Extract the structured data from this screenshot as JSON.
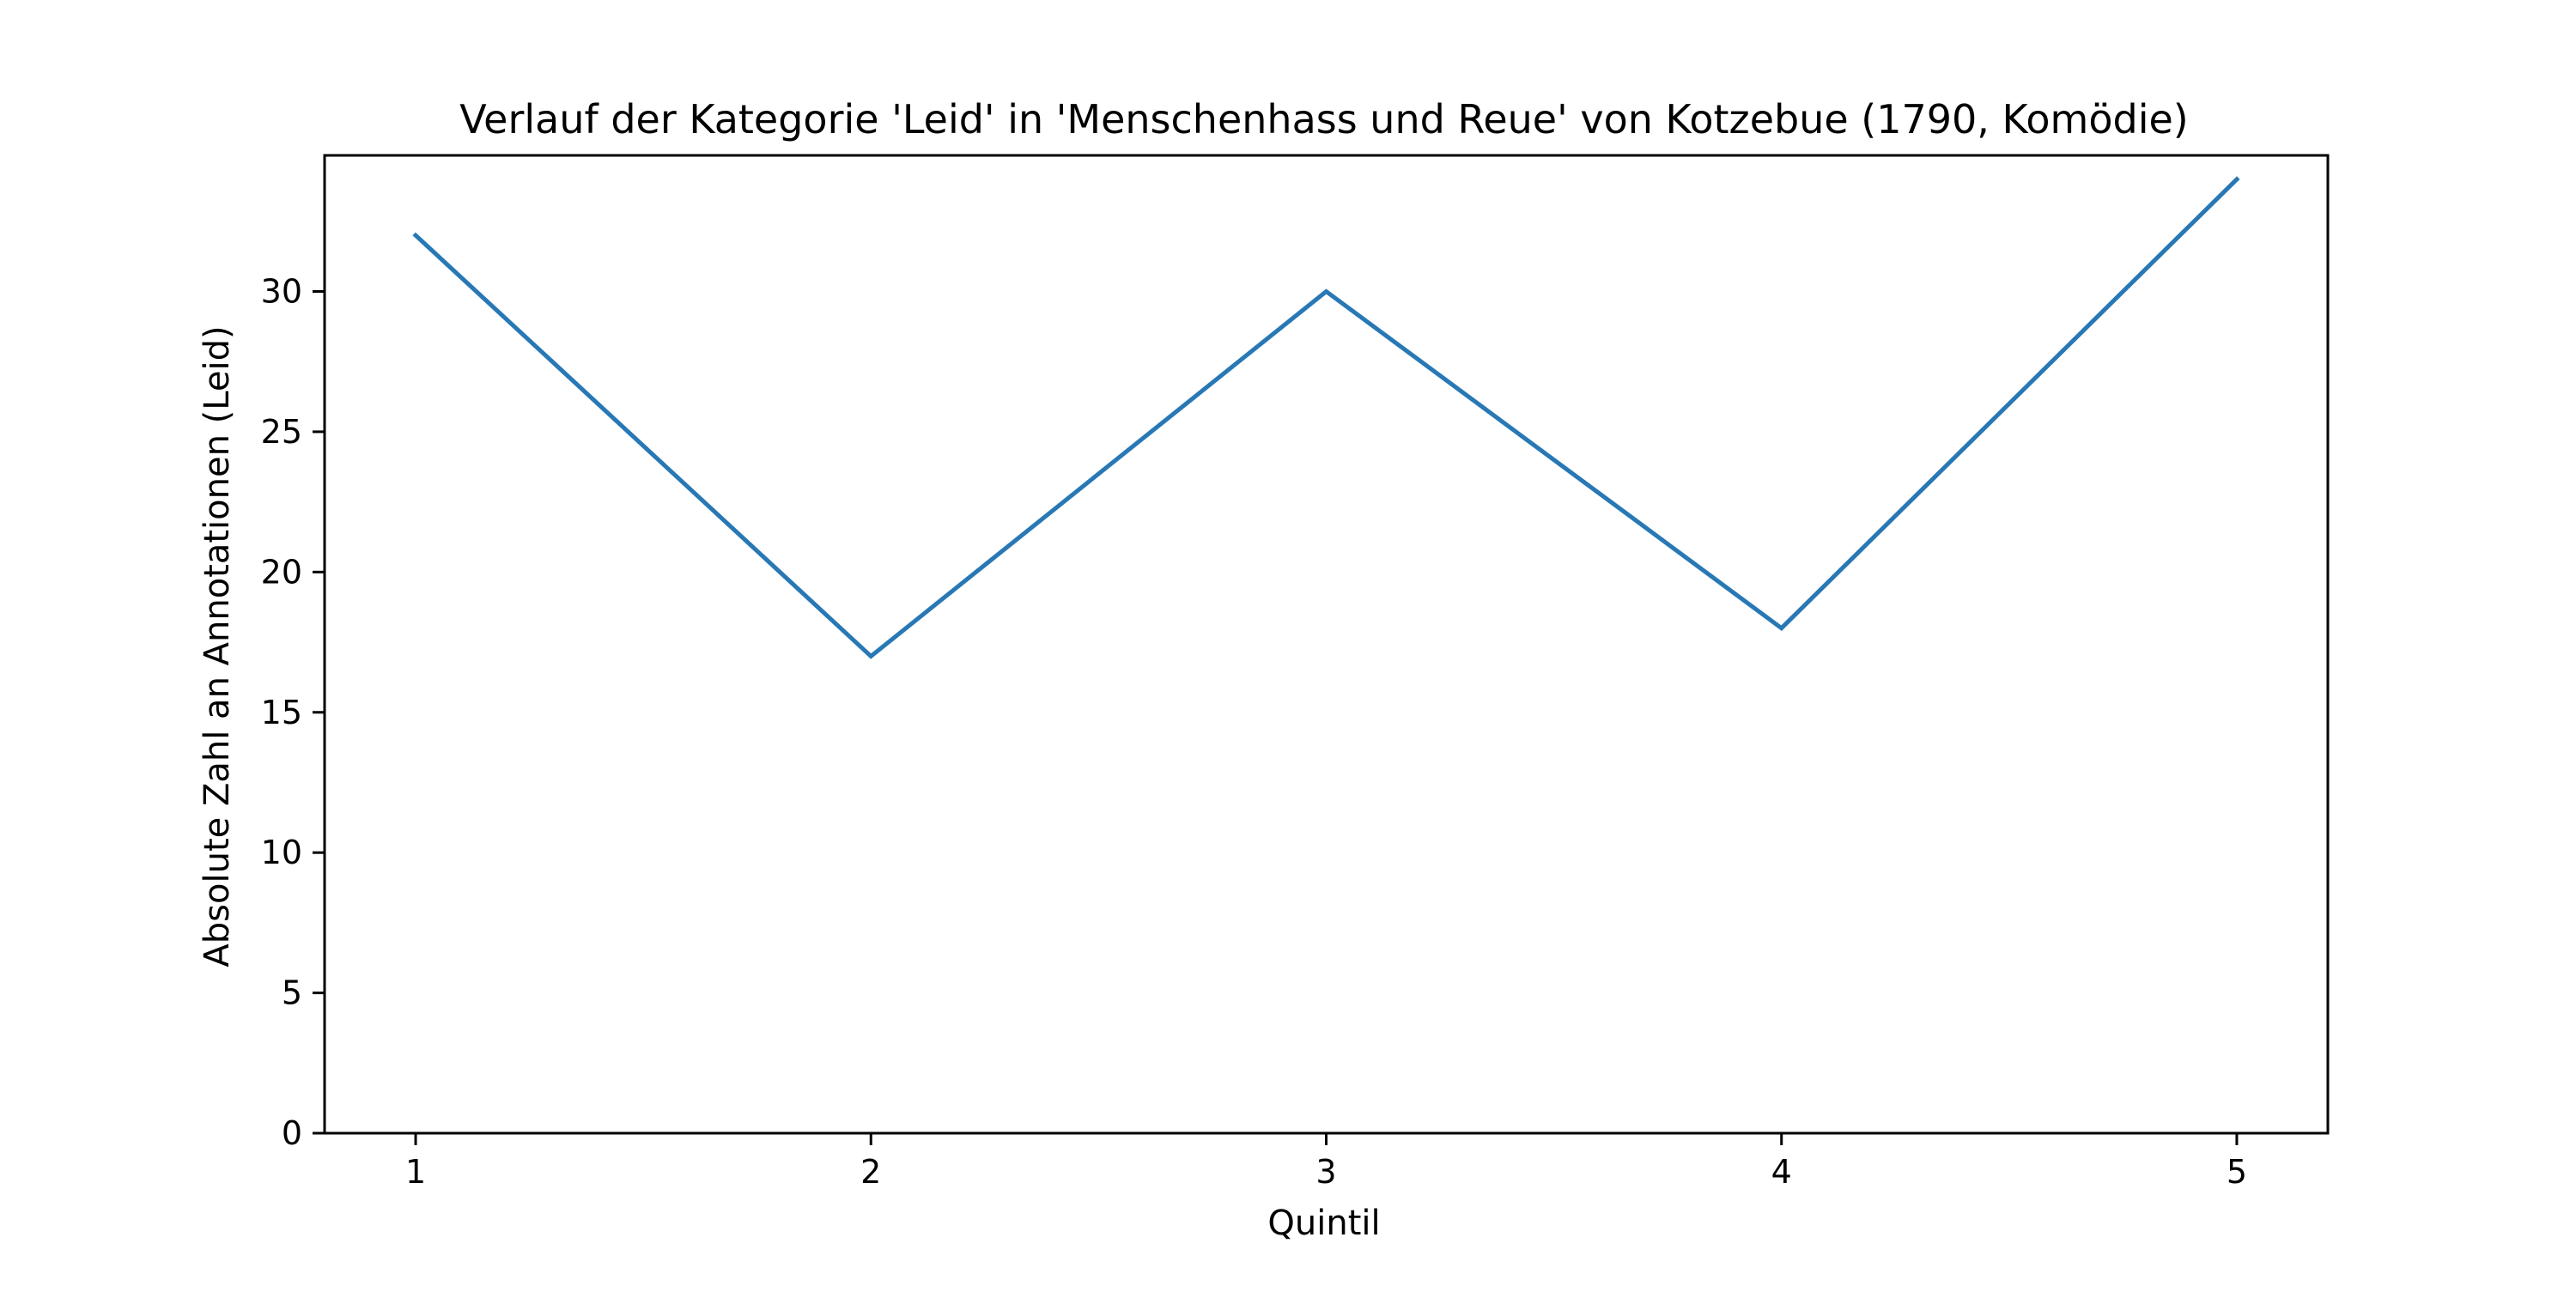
{
  "chart_data": {
    "type": "line",
    "title": "Verlauf der Kategorie 'Leid' in 'Menschenhass und Reue' von Kotzebue (1790, Komödie)",
    "xlabel": "Quintil",
    "ylabel": "Absolute Zahl an Annotationen (Leid)",
    "x": [
      1,
      2,
      3,
      4,
      5
    ],
    "series": [
      {
        "values": [
          32,
          17,
          30,
          18,
          34
        ],
        "color": "#2878b5"
      }
    ],
    "xlim": [
      0.8,
      5.2
    ],
    "ylim": [
      0,
      34.85
    ],
    "xticks": [
      1,
      2,
      3,
      4,
      5
    ],
    "yticks": [
      0,
      5,
      10,
      15,
      20,
      25,
      30
    ],
    "grid": false,
    "legend": "none"
  }
}
